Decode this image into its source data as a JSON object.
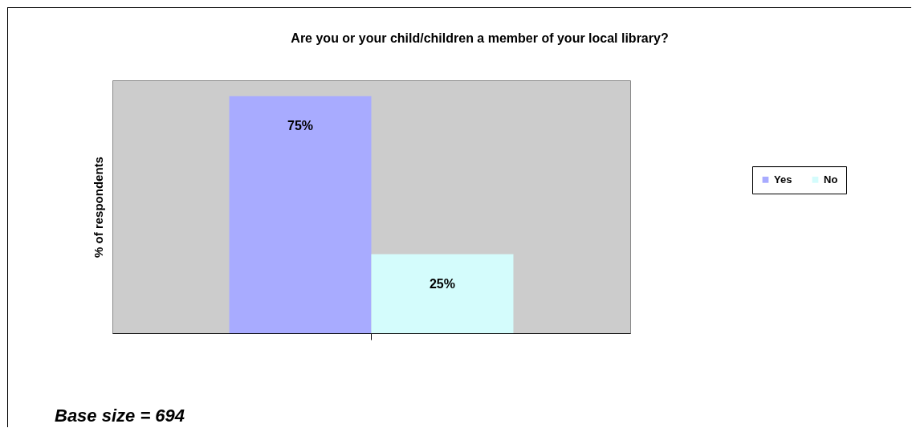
{
  "chart_data": {
    "type": "bar",
    "title": "Are you or your child/children a member of your local library?",
    "ylabel": "% of respondents",
    "categories": [
      null
    ],
    "series": [
      {
        "name": "Yes",
        "color": "#a8abff",
        "values": [
          75
        ],
        "value_labels": [
          "75%"
        ]
      },
      {
        "name": "No",
        "color": "#d4fcfc",
        "values": [
          25
        ],
        "value_labels": [
          "25%"
        ]
      }
    ],
    "ylim": [
      0,
      80
    ],
    "legend": "right",
    "annotations": [
      "Base size = 694"
    ]
  }
}
